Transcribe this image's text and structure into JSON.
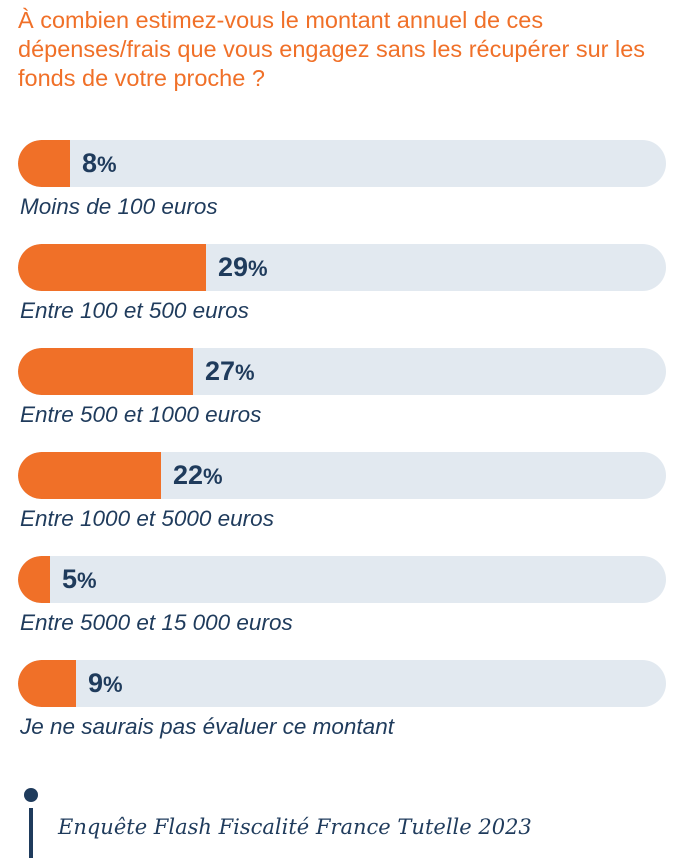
{
  "question": "À combien estimez-vous le montant annuel de ces dépenses/frais que vous engagez sans les récupérer sur les fonds de votre proche ?",
  "colors": {
    "accent": "#f07028",
    "track": "#e2e9f0",
    "text": "#1f3b5c"
  },
  "chart_data": {
    "type": "bar",
    "orientation": "horizontal",
    "categories": [
      "Moins de 100 euros",
      "Entre 100 et 500 euros",
      "Entre 500 et 1000 euros",
      "Entre 1000 et 5000 euros",
      "Entre 5000 et 15 000 euros",
      "Je ne saurais pas évaluer ce montant"
    ],
    "values": [
      8,
      29,
      27,
      22,
      5,
      9
    ],
    "value_labels": [
      "8",
      "29",
      "27",
      "22",
      "5",
      "9"
    ],
    "unit": "%",
    "xlim": [
      0,
      100
    ]
  },
  "source": "Enquête Flash Fiscalité France Tutelle 2023"
}
